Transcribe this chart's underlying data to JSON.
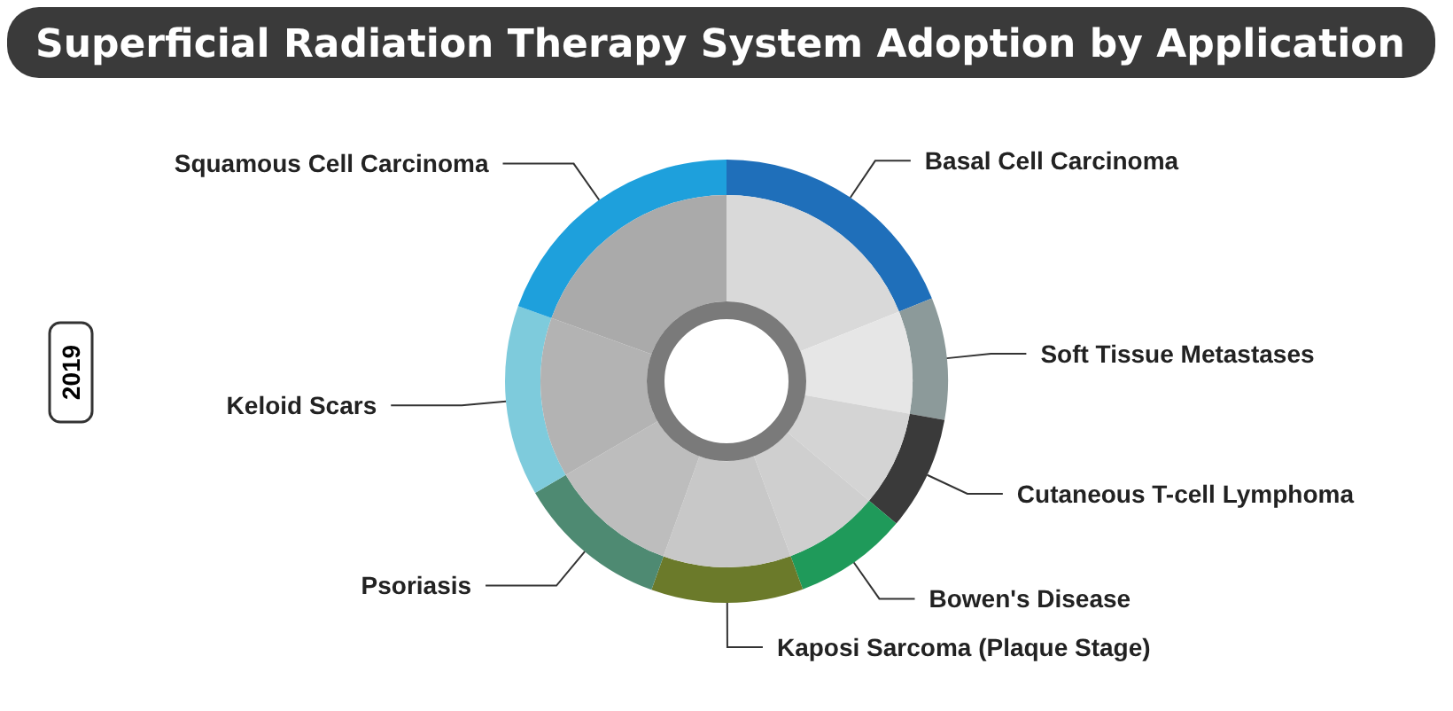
{
  "chart_data": {
    "type": "donut",
    "title": "Superficial Radiation Therapy System Adoption by Application",
    "annotations": [
      "2019"
    ],
    "categories": [
      "Basal Cell Carcinoma",
      "Soft Tissue Metastases",
      "Cutaneous T-cell Lymphoma",
      "Bowen's Disease",
      "Kaposi Sarcoma (Plaque Stage)",
      "Psoriasis",
      "Keloid Scars",
      "Squamous Cell Carcinoma"
    ],
    "series": [
      {
        "values": [
          18.9,
          8.9,
          8.3,
          8.3,
          11.1,
          11.1,
          13.9,
          19.5
        ],
        "colors": [
          "#1f6fba",
          "#8c9a9a",
          "#3a3a3a",
          "#1f9a5a",
          "#6b7a2a",
          "#4e8a72",
          "#7ecbdc",
          "#1ea0dc"
        ]
      },
      {
        "values": [
          18.9,
          8.9,
          8.3,
          8.3,
          11.1,
          11.1,
          13.9,
          19.5
        ],
        "colors": [
          "#d9d9d9",
          "#e6e6e6",
          "#d4d4d4",
          "#cfcfcf",
          "#c8c8c8",
          "#bdbdbd",
          "#b3b3b3",
          "#aaaaaa"
        ]
      }
    ]
  }
}
